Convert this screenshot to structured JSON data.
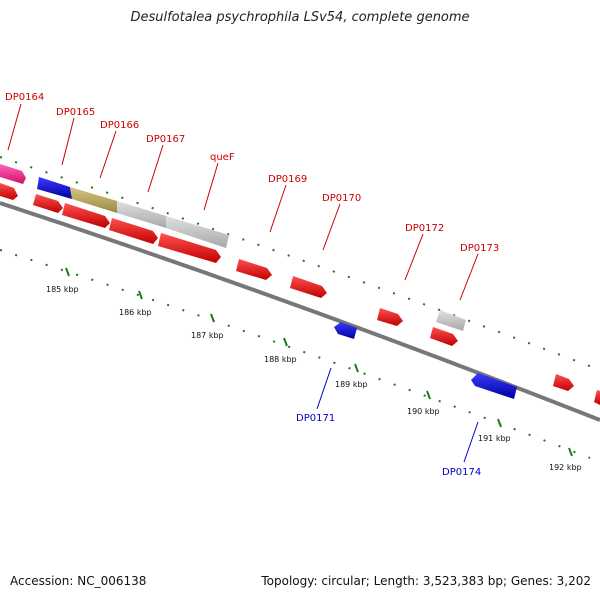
{
  "header": {
    "title": "Desulfotalea psychrophila LSv54, complete genome"
  },
  "footer": {
    "accession": "Accession: NC_006138",
    "summary": "Topology: circular; Length: 3,523,383 bp; Genes: 3,202"
  },
  "colors": {
    "forward_label": "#cc0000",
    "reverse_label": "#0000cc",
    "backbone": "#7a7a7a",
    "tick": "#1a7a1a"
  },
  "ticks": [
    "185 kbp",
    "186 kbp",
    "187 kbp",
    "188 kbp",
    "189 kbp",
    "190 kbp",
    "191 kbp",
    "192 kbp"
  ],
  "gene_labels": {
    "forward": [
      "DP0164",
      "DP0165",
      "DP0166",
      "DP0167",
      "queF",
      "DP0169",
      "DP0170",
      "DP0172",
      "DP0173"
    ],
    "reverse": [
      "DP0171",
      "DP0174"
    ]
  },
  "feature_colors": {
    "cds_red": "#ff0000",
    "cds_blue": "#0000ff",
    "pink": "#ff3399",
    "olive": "#b8a860",
    "grey": "#c8c8c8"
  }
}
